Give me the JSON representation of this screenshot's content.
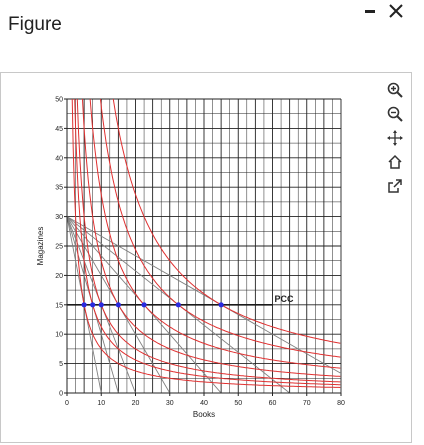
{
  "window": {
    "title": "Figure",
    "minimize_icon": "minus-icon",
    "close_icon": "close-x-icon"
  },
  "toolbar": {
    "items": [
      {
        "name": "zoom-in-icon"
      },
      {
        "name": "zoom-out-icon"
      },
      {
        "name": "pan-icon"
      },
      {
        "name": "home-icon"
      },
      {
        "name": "export-icon"
      }
    ]
  },
  "chart_data": {
    "type": "line",
    "xlabel": "Books",
    "ylabel": "Magazines",
    "xlim": [
      0,
      80
    ],
    "ylim": [
      0,
      50
    ],
    "xticks": [
      0,
      10,
      20,
      30,
      40,
      50,
      60,
      70,
      80
    ],
    "yticks": [
      0,
      5,
      10,
      15,
      20,
      25,
      30,
      35,
      40,
      45,
      50
    ],
    "grid": true,
    "annotation": "PCC",
    "colors": {
      "budget": "#808080",
      "indifference": "#e03030",
      "pcc": "#1a1a1a",
      "points": "#2a2ae0",
      "grid": "#222222"
    },
    "budget_lines": [
      {
        "y_intercept": 30,
        "x_intercept": 10
      },
      {
        "y_intercept": 30,
        "x_intercept": 15
      },
      {
        "y_intercept": 30,
        "x_intercept": 20
      },
      {
        "y_intercept": 30,
        "x_intercept": 30
      },
      {
        "y_intercept": 30,
        "x_intercept": 45
      },
      {
        "y_intercept": 30,
        "x_intercept": 65
      },
      {
        "y_intercept": 30,
        "x_intercept": 90
      }
    ],
    "pcc_points": [
      {
        "x": 5,
        "y": 15
      },
      {
        "x": 7.5,
        "y": 15
      },
      {
        "x": 10,
        "y": 15
      },
      {
        "x": 15,
        "y": 15
      },
      {
        "x": 22.5,
        "y": 15
      },
      {
        "x": 32.5,
        "y": 15
      },
      {
        "x": 45,
        "y": 15
      }
    ],
    "pcc_line": {
      "y": 15,
      "x_start": 0,
      "x_end": 60
    }
  }
}
